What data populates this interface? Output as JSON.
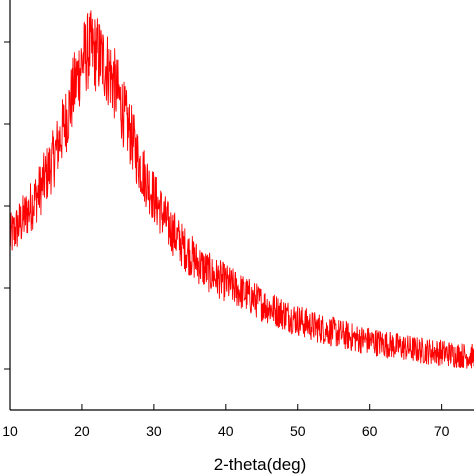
{
  "chart_data": {
    "type": "line",
    "title": "",
    "xlabel": "2-theta(deg)",
    "ylabel": "",
    "xlim": [
      10,
      74.5
    ],
    "ylim": [
      0,
      1
    ],
    "x_ticks": [
      "10",
      "20",
      "30",
      "40",
      "50",
      "60",
      "70"
    ],
    "y_tick_count": 5,
    "y_tick_labels_visible": false,
    "grid": false,
    "legend": "none",
    "series": [
      {
        "color": "#ff0000",
        "noisy": true,
        "x": [
          10,
          12,
          14,
          16,
          18,
          19,
          20,
          21,
          22,
          23,
          24,
          25,
          26,
          27,
          28,
          30,
          32,
          34,
          36,
          38,
          40,
          42,
          44,
          46,
          48,
          50,
          52,
          55,
          58,
          61,
          64,
          67,
          70,
          72,
          74.5
        ],
        "y": [
          0.42,
          0.47,
          0.53,
          0.61,
          0.72,
          0.79,
          0.85,
          0.88,
          0.87,
          0.85,
          0.82,
          0.77,
          0.71,
          0.66,
          0.6,
          0.52,
          0.45,
          0.4,
          0.36,
          0.33,
          0.31,
          0.29,
          0.27,
          0.25,
          0.235,
          0.22,
          0.205,
          0.19,
          0.175,
          0.165,
          0.155,
          0.145,
          0.14,
          0.135,
          0.13
        ]
      }
    ]
  }
}
